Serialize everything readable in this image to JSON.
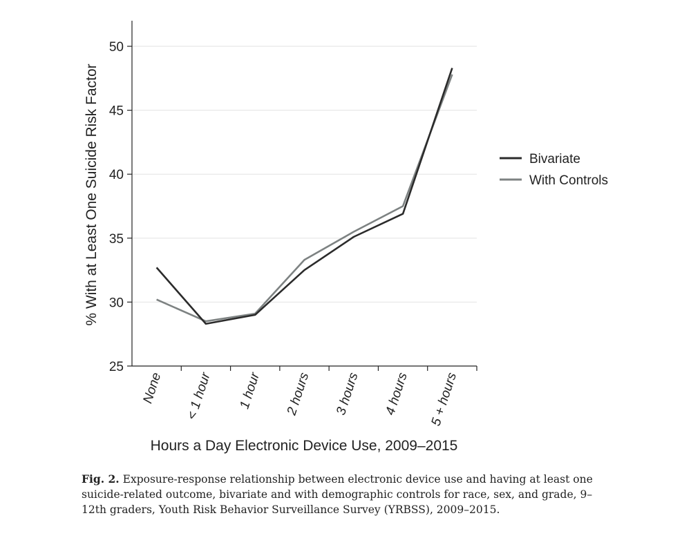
{
  "chart_data": {
    "type": "line",
    "categories": [
      "None",
      "< 1 hour",
      "1 hour",
      "2 hours",
      "3 hours",
      "4 hours",
      "5 + hours"
    ],
    "series": [
      {
        "name": "Bivariate",
        "values": [
          32.7,
          28.3,
          29.0,
          32.5,
          35.1,
          36.9,
          48.3
        ],
        "color": "#2b2b2b"
      },
      {
        "name": "With Controls",
        "values": [
          30.2,
          28.5,
          29.1,
          33.3,
          35.5,
          37.5,
          47.8
        ],
        "color": "#7d8282"
      }
    ],
    "ylabel": "% With at Least One Suicide Risk Factor",
    "xlabel": "Hours a Day Electronic Device Use, 2009–2015",
    "ylim": [
      25,
      52
    ],
    "yticks": [
      25,
      30,
      35,
      40,
      45,
      50
    ],
    "grid": true,
    "legend_position": "right"
  },
  "caption": {
    "label": "Fig. 2.",
    "text": "Exposure-response relationship between electronic device use and having at least one suicide-related outcome, bivariate and with demographic controls for race, sex, and grade, 9–12th graders, Youth Risk Behavior Surveillance Survey (YRBSS), 2009–2015."
  }
}
